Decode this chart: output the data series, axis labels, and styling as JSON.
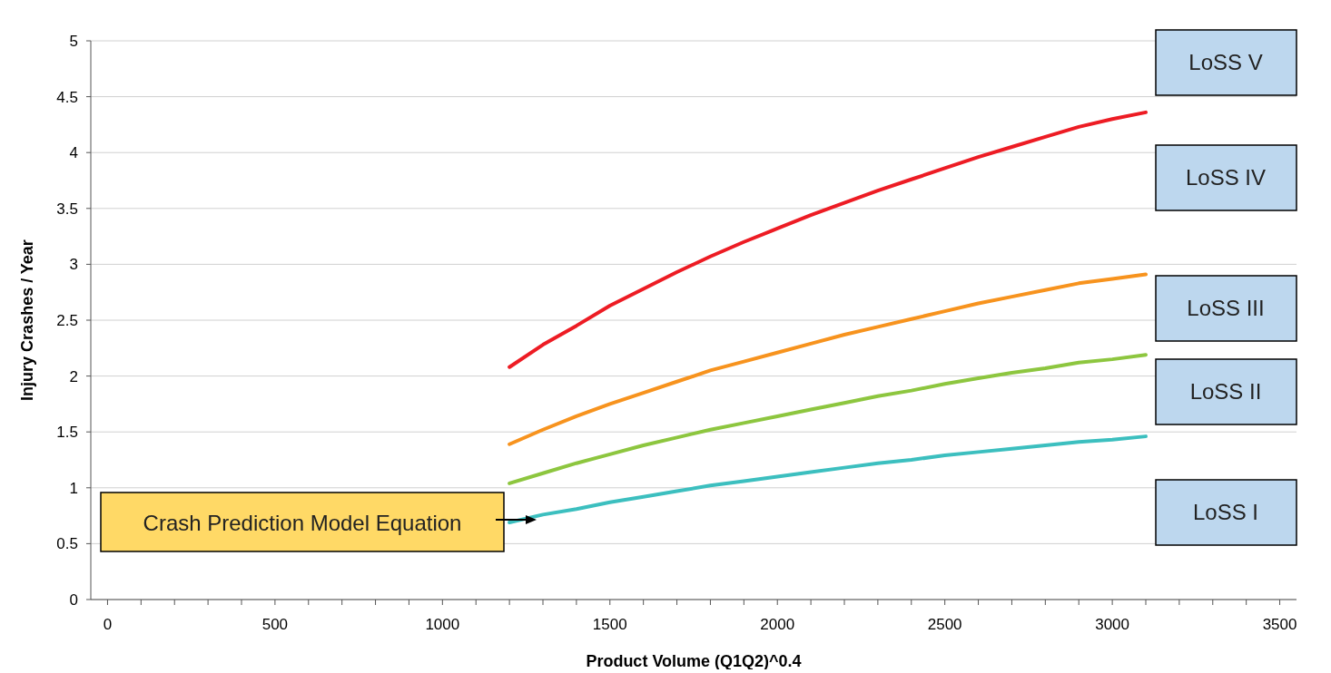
{
  "chart_data": {
    "type": "line",
    "xlabel": "Product Volume (Q1Q2)^0.4",
    "ylabel": "Injury Crashes / Year",
    "x": [
      1200,
      1300,
      1400,
      1500,
      1600,
      1700,
      1800,
      1900,
      2000,
      2100,
      2200,
      2300,
      2400,
      2500,
      2600,
      2700,
      2800,
      2900,
      3000,
      3100
    ],
    "series": [
      {
        "color": "#ed1c24",
        "values": [
          2.08,
          2.28,
          2.45,
          2.63,
          2.78,
          2.93,
          3.07,
          3.2,
          3.32,
          3.44,
          3.55,
          3.66,
          3.76,
          3.86,
          3.96,
          4.05,
          4.14,
          4.23,
          4.3,
          4.36
        ]
      },
      {
        "color": "#f7931e",
        "values": [
          1.39,
          1.52,
          1.64,
          1.75,
          1.85,
          1.95,
          2.05,
          2.13,
          2.21,
          2.29,
          2.37,
          2.44,
          2.51,
          2.58,
          2.65,
          2.71,
          2.77,
          2.83,
          2.87,
          2.91
        ]
      },
      {
        "color": "#8dc63f",
        "values": [
          1.04,
          1.13,
          1.22,
          1.3,
          1.38,
          1.45,
          1.52,
          1.58,
          1.64,
          1.7,
          1.76,
          1.82,
          1.87,
          1.93,
          1.98,
          2.03,
          2.07,
          2.12,
          2.15,
          2.19
        ]
      },
      {
        "color": "#3cbfbf",
        "values": [
          0.69,
          0.76,
          0.81,
          0.87,
          0.92,
          0.97,
          1.02,
          1.06,
          1.1,
          1.14,
          1.18,
          1.22,
          1.25,
          1.29,
          1.32,
          1.35,
          1.38,
          1.41,
          1.43,
          1.46
        ]
      }
    ],
    "xlim": [
      -50,
      3550
    ],
    "xticks": [
      0,
      {
        "value": 100,
        "label": null
      },
      {
        "value": 200,
        "label": null
      },
      {
        "value": 300,
        "label": null
      },
      {
        "value": 400,
        "label": null
      },
      500,
      {
        "value": 600,
        "label": null
      },
      {
        "value": 700,
        "label": null
      },
      {
        "value": 800,
        "label": null
      },
      {
        "value": 900,
        "label": null
      },
      1000,
      {
        "value": 1100,
        "label": null
      },
      {
        "value": 1200,
        "label": null
      },
      {
        "value": 1300,
        "label": null
      },
      {
        "value": 1400,
        "label": null
      },
      1500,
      {
        "value": 1600,
        "label": null
      },
      {
        "value": 1700,
        "label": null
      },
      {
        "value": 1800,
        "label": null
      },
      {
        "value": 1900,
        "label": null
      },
      2000,
      {
        "value": 2100,
        "label": null
      },
      {
        "value": 2200,
        "label": null
      },
      {
        "value": 2300,
        "label": null
      },
      {
        "value": 2400,
        "label": null
      },
      2500,
      {
        "value": 2600,
        "label": null
      },
      {
        "value": 2700,
        "label": null
      },
      {
        "value": 2800,
        "label": null
      },
      {
        "value": 2900,
        "label": null
      },
      3000,
      {
        "value": 3100,
        "label": null
      },
      {
        "value": 3200,
        "label": null
      },
      {
        "value": 3300,
        "label": null
      },
      {
        "value": 3400,
        "label": null
      },
      3500
    ],
    "ylim": [
      0,
      5
    ],
    "yticks": [
      0,
      0.5,
      1,
      1.5,
      2,
      2.5,
      3,
      3.5,
      4,
      4.5,
      5
    ],
    "grid": "y",
    "marker": "none",
    "line_style": "solid",
    "annotations": [
      "Crash Prediction Model Equation",
      "LoSS V",
      "LoSS IV",
      "LoSS III",
      "LoSS II",
      "LoSS I"
    ]
  }
}
